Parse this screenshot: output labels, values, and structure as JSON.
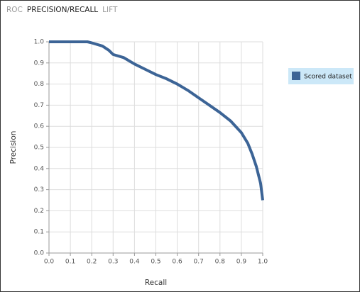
{
  "tabs": [
    "ROC",
    "PRECISION/RECALL",
    "LIFT"
  ],
  "chart_data": {
    "type": "line",
    "x_label": "Recall",
    "y_label": "Precision",
    "x": [
      0,
      0.18,
      0.2,
      0.25,
      0.28,
      0.3,
      0.35,
      0.4,
      0.45,
      0.5,
      0.55,
      0.6,
      0.65,
      0.7,
      0.75,
      0.8,
      0.85,
      0.9,
      0.93,
      0.95,
      0.97,
      0.98,
      0.99,
      1.0
    ],
    "series": [
      {
        "name": "Scored dataset",
        "color": "#3c6496",
        "values": [
          1.0,
          1.0,
          0.995,
          0.98,
          0.96,
          0.94,
          0.925,
          0.895,
          0.87,
          0.845,
          0.825,
          0.8,
          0.77,
          0.735,
          0.7,
          0.665,
          0.625,
          0.57,
          0.52,
          0.47,
          0.41,
          0.37,
          0.33,
          0.25
        ]
      }
    ],
    "xlim": [
      0,
      1
    ],
    "ylim": [
      0,
      1
    ],
    "xticks": [
      {
        "value": 0,
        "label": "0.0"
      },
      0.1,
      0.2,
      0.3,
      0.4,
      0.5,
      0.6,
      0.7,
      0.8,
      0.9,
      {
        "value": 1,
        "label": "1.0"
      }
    ],
    "yticks": [
      {
        "value": 0,
        "label": "0.0"
      },
      0.1,
      0.2,
      0.3,
      0.4,
      0.5,
      0.6,
      0.7,
      0.8,
      0.9,
      {
        "value": 1,
        "label": "1.0"
      }
    ],
    "grid": true
  }
}
